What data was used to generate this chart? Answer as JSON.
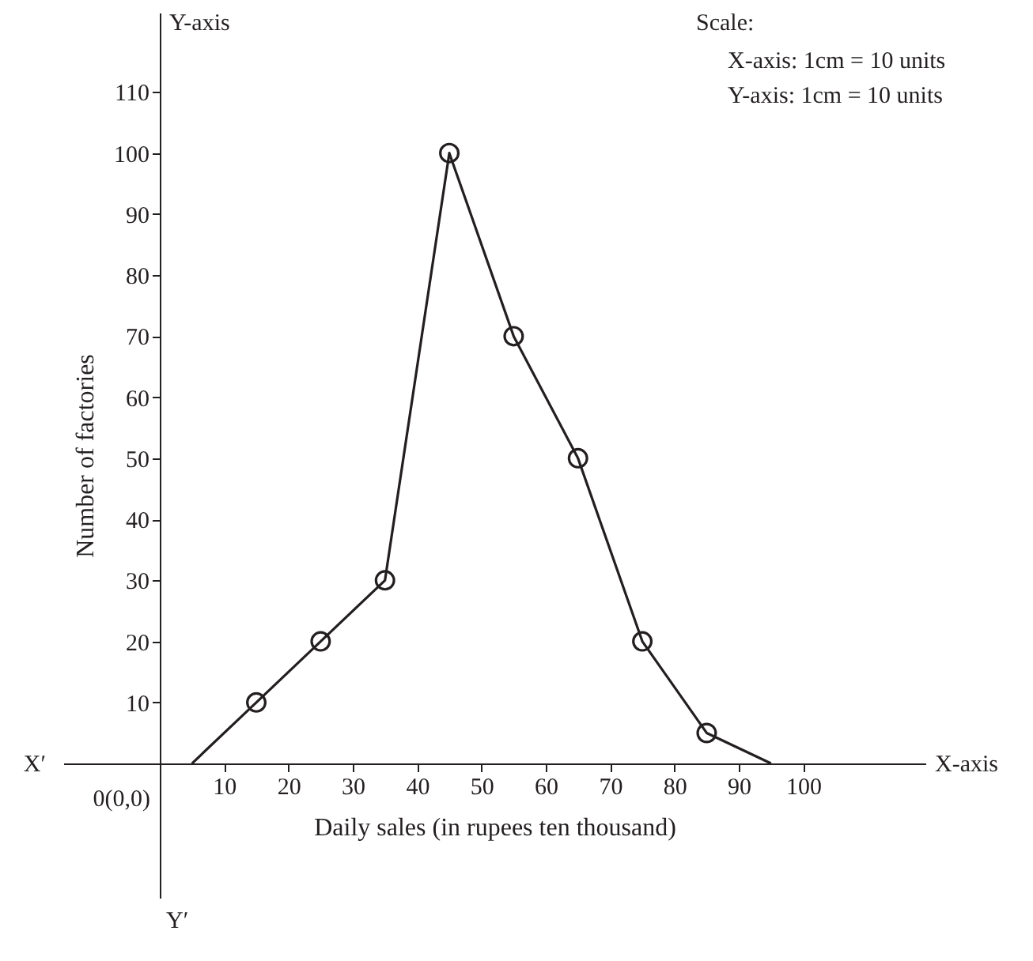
{
  "chart_data": {
    "type": "line",
    "xlabel": "Daily sales (in rupees ten thousand)",
    "ylabel": "Number of factories",
    "annotations": [
      "Y-axis",
      "X-axis",
      "X′",
      "Y′",
      "0(0,0)",
      "Scale:",
      "X-axis: 1cm = 10 units",
      "Y-axis: 1cm = 10 units"
    ],
    "xlim": [
      -15,
      119
    ],
    "ylim": [
      -22,
      123
    ],
    "xticks": [
      10,
      20,
      30,
      40,
      50,
      60,
      70,
      80,
      90,
      100
    ],
    "yticks": [
      10,
      20,
      30,
      40,
      50,
      60,
      70,
      80,
      90,
      100,
      110
    ],
    "grid": false,
    "line_style": "solid",
    "series": [
      {
        "type": "line",
        "marker": "none",
        "color": "#231f20",
        "x": [
          5,
          15,
          25,
          35,
          45,
          55,
          65,
          75,
          85,
          95
        ],
        "values": [
          0,
          10,
          20,
          30,
          100,
          70,
          50,
          20,
          5,
          0
        ]
      },
      {
        "type": "scatter",
        "marker": "circle",
        "color": "#231f20",
        "x": [
          15,
          25,
          35,
          45,
          55,
          65,
          75,
          85
        ],
        "values": [
          10,
          20,
          30,
          100,
          70,
          50,
          20,
          5
        ]
      }
    ]
  }
}
